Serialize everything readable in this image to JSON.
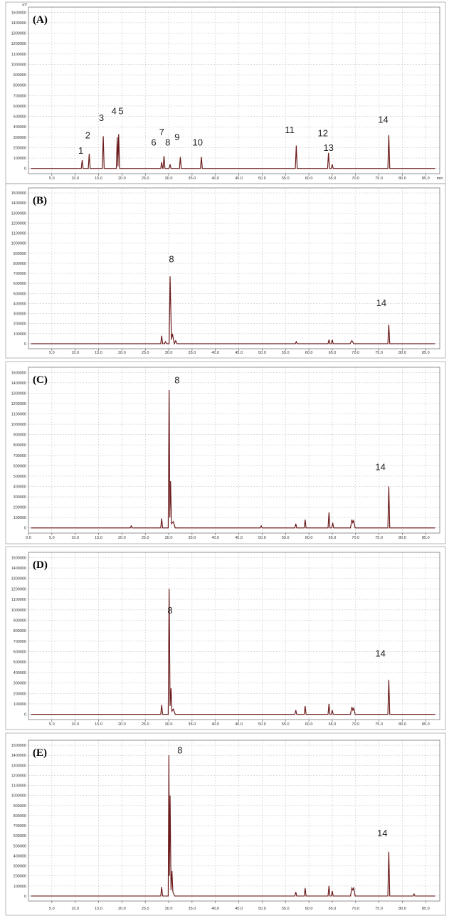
{
  "chart_data": [
    {
      "type": "line",
      "title": "(A)",
      "ylabel": "uV",
      "xlabel": "min",
      "color": "#6b1a1a",
      "grid": true,
      "xlim": [
        0,
        88
      ],
      "ylim": [
        -50000,
        1550000
      ],
      "xticks": [
        {
          "value": 5,
          "label": "5.0"
        },
        {
          "value": 10,
          "label": "10.0"
        },
        {
          "value": 15,
          "label": "15.0"
        },
        {
          "value": 20,
          "label": "20.0"
        },
        {
          "value": 25,
          "label": "25.0"
        },
        {
          "value": 30,
          "label": "30.0"
        },
        {
          "value": 35,
          "label": "35.0"
        },
        {
          "value": 40,
          "label": "40.0"
        },
        {
          "value": 45,
          "label": "45.0"
        },
        {
          "value": 50,
          "label": "50.0"
        },
        {
          "value": 55,
          "label": "55.0"
        },
        {
          "value": 60,
          "label": "60.0"
        },
        {
          "value": 65,
          "label": "65.0"
        },
        {
          "value": 70,
          "label": "70.0"
        },
        {
          "value": 75,
          "label": "75.0"
        },
        {
          "value": 80,
          "label": "80.0"
        },
        {
          "value": 85,
          "label": "85.0"
        }
      ],
      "yticks": [
        0,
        100000,
        200000,
        300000,
        400000,
        500000,
        600000,
        700000,
        800000,
        900000,
        1000000,
        1100000,
        1200000,
        1300000,
        1400000,
        1500000
      ],
      "x": [
        0.5,
        11.3,
        11.5,
        11.7,
        12.8,
        13.0,
        13.2,
        15.8,
        16.0,
        16.2,
        18.8,
        19.0,
        19.15,
        19.3,
        19.5,
        28.3,
        28.5,
        28.7,
        28.8,
        29.0,
        29.2,
        30.1,
        30.3,
        30.5,
        32.3,
        32.5,
        32.7,
        36.8,
        37.0,
        37.2,
        57.1,
        57.3,
        57.5,
        64.0,
        64.2,
        64.4,
        64.8,
        65.0,
        65.2,
        76.9,
        77.1,
        77.3,
        87.0
      ],
      "values": [
        0,
        0,
        80000,
        0,
        0,
        140000,
        0,
        0,
        310000,
        0,
        0,
        300000,
        20000,
        330000,
        0,
        0,
        60000,
        0,
        0,
        120000,
        0,
        0,
        40000,
        0,
        0,
        110000,
        0,
        0,
        110000,
        0,
        0,
        220000,
        0,
        0,
        150000,
        0,
        0,
        40000,
        0,
        0,
        320000,
        0,
        0
      ],
      "annotations": [
        {
          "text": "1",
          "x": 11.2,
          "y": 140000
        },
        {
          "text": "2",
          "x": 12.7,
          "y": 290000
        },
        {
          "text": "3",
          "x": 15.6,
          "y": 455000
        },
        {
          "text": "4",
          "x": 18.3,
          "y": 520000
        },
        {
          "text": "5",
          "x": 19.8,
          "y": 520000
        },
        {
          "text": "6",
          "x": 26.8,
          "y": 220000
        },
        {
          "text": "7",
          "x": 28.5,
          "y": 320000
        },
        {
          "text": "8",
          "x": 29.8,
          "y": 220000
        },
        {
          "text": "9",
          "x": 31.8,
          "y": 270000
        },
        {
          "text": "10",
          "x": 36.2,
          "y": 220000
        },
        {
          "text": "11",
          "x": 55.9,
          "y": 340000
        },
        {
          "text": "12",
          "x": 63.0,
          "y": 310000
        },
        {
          "text": "13",
          "x": 64.2,
          "y": 170000
        },
        {
          "text": "14",
          "x": 75.9,
          "y": 440000
        }
      ]
    },
    {
      "type": "line",
      "title": "(B)",
      "color": "#6b1a1a",
      "grid": true,
      "xlim": [
        0,
        88
      ],
      "ylim": [
        -50000,
        1550000
      ],
      "xticks": [
        {
          "value": 5,
          "label": "5.0"
        },
        {
          "value": 10,
          "label": "10.0"
        },
        {
          "value": 15,
          "label": "15.0"
        },
        {
          "value": 20,
          "label": "20.0"
        },
        {
          "value": 25,
          "label": "25.0"
        },
        {
          "value": 30,
          "label": "30.0"
        },
        {
          "value": 35,
          "label": "35.0"
        },
        {
          "value": 40,
          "label": "40.0"
        },
        {
          "value": 45,
          "label": "45.0"
        },
        {
          "value": 50,
          "label": "50.0"
        },
        {
          "value": 55,
          "label": "55.0"
        },
        {
          "value": 60,
          "label": "60.0"
        },
        {
          "value": 65,
          "label": "65.0"
        },
        {
          "value": 70,
          "label": "70.0"
        },
        {
          "value": 75,
          "label": "75.0"
        },
        {
          "value": 80,
          "label": "80.0"
        },
        {
          "value": 85,
          "label": "85.0"
        }
      ],
      "yticks": [
        0,
        100000,
        200000,
        300000,
        400000,
        500000,
        600000,
        700000,
        800000,
        900000,
        1000000,
        1100000,
        1200000,
        1300000,
        1400000,
        1500000
      ],
      "x": [
        0.5,
        28.3,
        28.5,
        28.7,
        29.1,
        29.3,
        29.6,
        30.1,
        30.3,
        30.6,
        30.8,
        31.2,
        31.5,
        31.8,
        57.1,
        57.3,
        57.5,
        64.1,
        64.3,
        64.5,
        64.8,
        65.0,
        65.2,
        68.8,
        69.2,
        69.6,
        76.9,
        77.1,
        77.3,
        87.0
      ],
      "values": [
        0,
        0,
        80000,
        0,
        0,
        20000,
        0,
        0,
        670000,
        40000,
        100000,
        0,
        30000,
        0,
        0,
        20000,
        0,
        0,
        40000,
        0,
        0,
        40000,
        0,
        0,
        30000,
        0,
        0,
        190000,
        0,
        0
      ],
      "annotations": [
        {
          "text": "8",
          "x": 30.6,
          "y": 810000
        },
        {
          "text": "14",
          "x": 75.5,
          "y": 375000
        }
      ]
    },
    {
      "type": "line",
      "title": "(C)",
      "color": "#6b1a1a",
      "grid": true,
      "xlim": [
        0,
        88
      ],
      "ylim": [
        -50000,
        1550000
      ],
      "xticks": [
        {
          "value": 0,
          "label": "0.0"
        },
        {
          "value": 5,
          "label": "5.0"
        },
        {
          "value": 10,
          "label": "10.0"
        },
        {
          "value": 15,
          "label": "15.0"
        },
        {
          "value": 20,
          "label": "20.0"
        },
        {
          "value": 25,
          "label": "25.0"
        },
        {
          "value": 30,
          "label": "30.0"
        },
        {
          "value": 35,
          "label": "35.0"
        },
        {
          "value": 40,
          "label": "40.0"
        },
        {
          "value": 45,
          "label": "45.0"
        },
        {
          "value": 50,
          "label": "50.0"
        },
        {
          "value": 55,
          "label": "55.0"
        },
        {
          "value": 60,
          "label": "60.0"
        },
        {
          "value": 65,
          "label": "65.0"
        },
        {
          "value": 70,
          "label": "70.0"
        },
        {
          "value": 75,
          "label": "75.0"
        },
        {
          "value": 80,
          "label": "80.0"
        },
        {
          "value": 85,
          "label": "85.0"
        }
      ],
      "yticks": [
        0,
        100000,
        200000,
        300000,
        400000,
        500000,
        600000,
        700000,
        800000,
        900000,
        1000000,
        1100000,
        1200000,
        1300000,
        1400000,
        1500000
      ],
      "x": [
        0.5,
        21.8,
        22.0,
        22.2,
        28.3,
        28.5,
        28.7,
        29.9,
        30.1,
        30.25,
        30.4,
        30.6,
        31.0,
        31.4,
        49.6,
        49.8,
        50.0,
        57.0,
        57.2,
        57.4,
        59.0,
        59.2,
        59.4,
        64.1,
        64.3,
        64.5,
        64.9,
        65.1,
        65.3,
        68.9,
        69.2,
        69.4,
        69.6,
        69.9,
        76.9,
        77.1,
        77.3,
        87.0
      ],
      "values": [
        0,
        0,
        20000,
        0,
        0,
        90000,
        0,
        0,
        1330000,
        100000,
        450000,
        40000,
        60000,
        0,
        0,
        20000,
        0,
        0,
        40000,
        0,
        0,
        80000,
        0,
        0,
        150000,
        0,
        0,
        50000,
        0,
        0,
        80000,
        50000,
        70000,
        0,
        0,
        400000,
        0,
        0
      ],
      "annotations": [
        {
          "text": "8",
          "x": 31.8,
          "y": 1395000
        },
        {
          "text": "14",
          "x": 75.3,
          "y": 557000
        }
      ]
    },
    {
      "type": "line",
      "title": "(D)",
      "color": "#6b1a1a",
      "grid": true,
      "xlim": [
        0,
        88
      ],
      "ylim": [
        -50000,
        1550000
      ],
      "xticks": [
        {
          "value": 5,
          "label": "5.0"
        },
        {
          "value": 10,
          "label": "10.0"
        },
        {
          "value": 15,
          "label": "15.0"
        },
        {
          "value": 20,
          "label": "20.0"
        },
        {
          "value": 25,
          "label": "25.0"
        },
        {
          "value": 30,
          "label": "30.0"
        },
        {
          "value": 35,
          "label": "35.0"
        },
        {
          "value": 40,
          "label": "40.0"
        },
        {
          "value": 45,
          "label": "45.0"
        },
        {
          "value": 50,
          "label": "50.0"
        },
        {
          "value": 55,
          "label": "55.0"
        },
        {
          "value": 60,
          "label": "60.0"
        },
        {
          "value": 65,
          "label": "65.0"
        },
        {
          "value": 70,
          "label": "70.0"
        },
        {
          "value": 75,
          "label": "75.0"
        },
        {
          "value": 80,
          "label": "80.0"
        },
        {
          "value": 85,
          "label": "85.0"
        }
      ],
      "yticks": [
        0,
        100000,
        200000,
        300000,
        400000,
        500000,
        600000,
        700000,
        800000,
        900000,
        1000000,
        1100000,
        1200000,
        1300000,
        1400000,
        1500000
      ],
      "x": [
        0.5,
        28.3,
        28.5,
        28.7,
        29.9,
        30.1,
        30.3,
        30.5,
        30.7,
        31.0,
        31.4,
        57.0,
        57.2,
        57.4,
        59.0,
        59.2,
        59.4,
        64.1,
        64.3,
        64.5,
        64.8,
        65.0,
        65.2,
        68.9,
        69.2,
        69.4,
        69.6,
        69.9,
        76.9,
        77.1,
        77.3,
        87.0
      ],
      "values": [
        0,
        0,
        90000,
        0,
        0,
        1200000,
        80000,
        250000,
        30000,
        50000,
        0,
        0,
        40000,
        0,
        0,
        80000,
        0,
        0,
        100000,
        0,
        0,
        40000,
        0,
        0,
        70000,
        40000,
        60000,
        0,
        0,
        330000,
        0,
        0
      ],
      "annotations": [
        {
          "text": "8",
          "x": 30.3,
          "y": 965000
        },
        {
          "text": "14",
          "x": 75.3,
          "y": 553000
        }
      ]
    },
    {
      "type": "line",
      "title": "(E)",
      "color": "#6b1a1a",
      "grid": true,
      "xlim": [
        0,
        88
      ],
      "ylim": [
        -50000,
        1550000
      ],
      "xticks": [
        {
          "value": 5,
          "label": "5.0"
        },
        {
          "value": 10,
          "label": "10.0"
        },
        {
          "value": 15,
          "label": "15.0"
        },
        {
          "value": 20,
          "label": "20.0"
        },
        {
          "value": 25,
          "label": "25.0"
        },
        {
          "value": 30,
          "label": "30.0"
        },
        {
          "value": 35,
          "label": "35.0"
        },
        {
          "value": 40,
          "label": "40.0"
        },
        {
          "value": 45,
          "label": "45.0"
        },
        {
          "value": 50,
          "label": "50.0"
        },
        {
          "value": 55,
          "label": "55.0"
        },
        {
          "value": 60,
          "label": "60.0"
        },
        {
          "value": 65,
          "label": "65.0"
        },
        {
          "value": 70,
          "label": "70.0"
        },
        {
          "value": 75,
          "label": "75.0"
        },
        {
          "value": 80,
          "label": "80.0"
        },
        {
          "value": 85,
          "label": "85.0"
        }
      ],
      "yticks": [
        0,
        100000,
        200000,
        300000,
        400000,
        500000,
        600000,
        700000,
        800000,
        900000,
        1000000,
        1100000,
        1200000,
        1300000,
        1400000,
        1500000
      ],
      "x": [
        0.5,
        28.3,
        28.5,
        28.7,
        29.9,
        30.05,
        30.15,
        30.3,
        30.5,
        30.7,
        30.9,
        31.3,
        57.0,
        57.2,
        57.4,
        59.0,
        59.2,
        59.4,
        64.1,
        64.3,
        64.5,
        64.8,
        65.0,
        65.2,
        68.9,
        69.2,
        69.4,
        69.6,
        69.9,
        76.9,
        77.1,
        77.3,
        82.3,
        82.5,
        82.7,
        87.0
      ],
      "values": [
        0,
        0,
        90000,
        0,
        0,
        1400000,
        200000,
        1000000,
        60000,
        250000,
        40000,
        0,
        0,
        40000,
        0,
        0,
        80000,
        0,
        0,
        100000,
        0,
        0,
        50000,
        0,
        0,
        80000,
        60000,
        80000,
        0,
        0,
        440000,
        0,
        0,
        20000,
        0,
        0
      ],
      "annotations": [
        {
          "text": "8",
          "x": 32.4,
          "y": 1420000
        },
        {
          "text": "14",
          "x": 75.7,
          "y": 594000
        }
      ]
    }
  ]
}
